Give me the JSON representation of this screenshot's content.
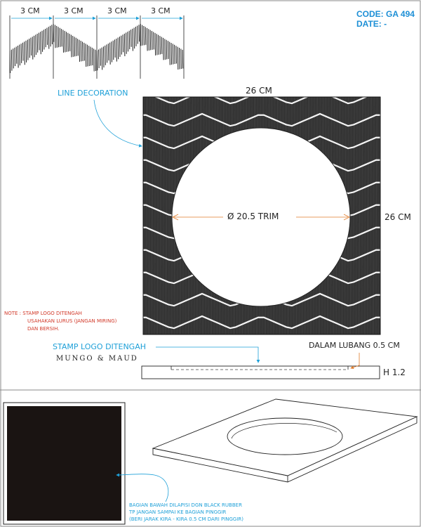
{
  "header": {
    "code": "CODE: GA 494",
    "date": "DATE: -"
  },
  "pattern_strip": {
    "segments": [
      "3 CM",
      "3 CM",
      "3 CM",
      "3 CM"
    ]
  },
  "labels": {
    "line_decoration": "LINE DECORATION",
    "width": "26 CM",
    "height": "26 CM",
    "circle": "Ø 20.5 TRIM",
    "stamp_logo": "STAMP LOGO DITENGAH",
    "hole_depth": "DALAM LUBANG 0.5 CM",
    "thickness": "H 1.2",
    "brand": "MUNGO & MAUD"
  },
  "note": {
    "lines": [
      "NOTE : STAMP LOGO DITENGAH",
      "USAHAKAN LURUS (JANGAN MIRING)",
      "DAN BERSIH."
    ]
  },
  "bottom_note": {
    "lines": [
      "BAGIAN BAWAH DILAPISI DGN BLACK RUBBER",
      "TP JANGAN SAMPAI KE BAGIAN PINGGIR",
      "(BERI JARAK KIRA - KIRA 0.5 CM DARI PINGGIR)"
    ]
  },
  "colors": {
    "accent": "#1ea0d8",
    "code": "#1d8fd6",
    "note": "#d23a2a",
    "leader": "#e07b2a",
    "rubber": "#1a1412"
  }
}
